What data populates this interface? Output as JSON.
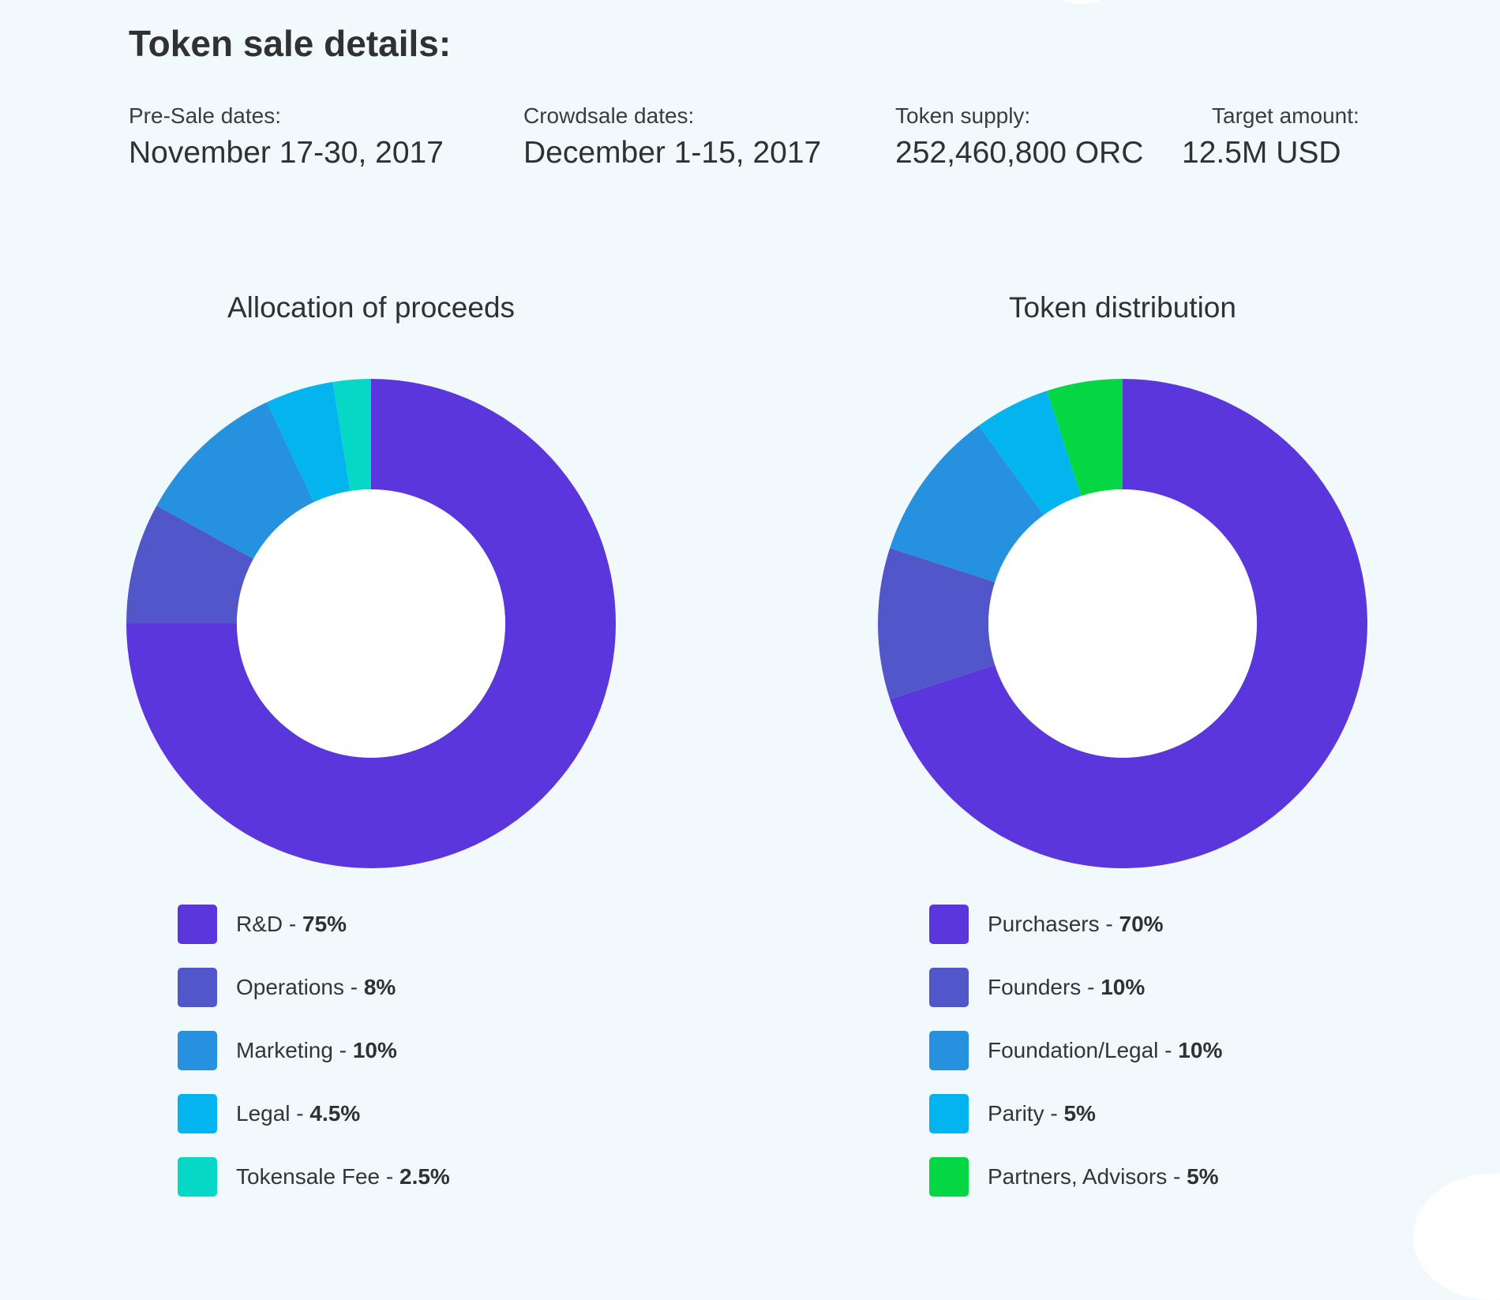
{
  "header": {
    "title": "Token sale details:"
  },
  "stats": [
    {
      "label": "Pre-Sale dates:",
      "value": "November 17-30, 2017"
    },
    {
      "label": "Crowdsale dates:",
      "value": "December 1-15, 2017"
    },
    {
      "label": "Token supply:",
      "value": "252,460,800 ORC"
    },
    {
      "label": "Target amount:",
      "value": "12.5M USD"
    }
  ],
  "chart_data": [
    {
      "type": "pie",
      "title": "Allocation of proceeds",
      "donut": true,
      "legend_position": "bottom",
      "categories": [
        "R&D",
        "Operations",
        "Marketing",
        "Legal",
        "Tokensale Fee"
      ],
      "values": [
        75,
        8,
        10,
        4.5,
        2.5
      ],
      "value_labels": [
        "75%",
        "8%",
        "10%",
        "4.5%",
        "2.5%"
      ],
      "colors": [
        "#5b36dc",
        "#5157c9",
        "#2691df",
        "#04b4ee",
        "#05d8c6"
      ]
    },
    {
      "type": "pie",
      "title": "Token distribution",
      "donut": true,
      "legend_position": "bottom",
      "categories": [
        "Purchasers",
        "Founders",
        "Foundation/Legal",
        "Parity",
        "Partners, Advisors"
      ],
      "values": [
        70,
        10,
        10,
        5,
        5
      ],
      "value_labels": [
        "70%",
        "10%",
        "10%",
        "5%",
        "5%"
      ],
      "colors": [
        "#5b36dc",
        "#5157c9",
        "#2691df",
        "#04b4ee",
        "#04d644"
      ]
    }
  ]
}
